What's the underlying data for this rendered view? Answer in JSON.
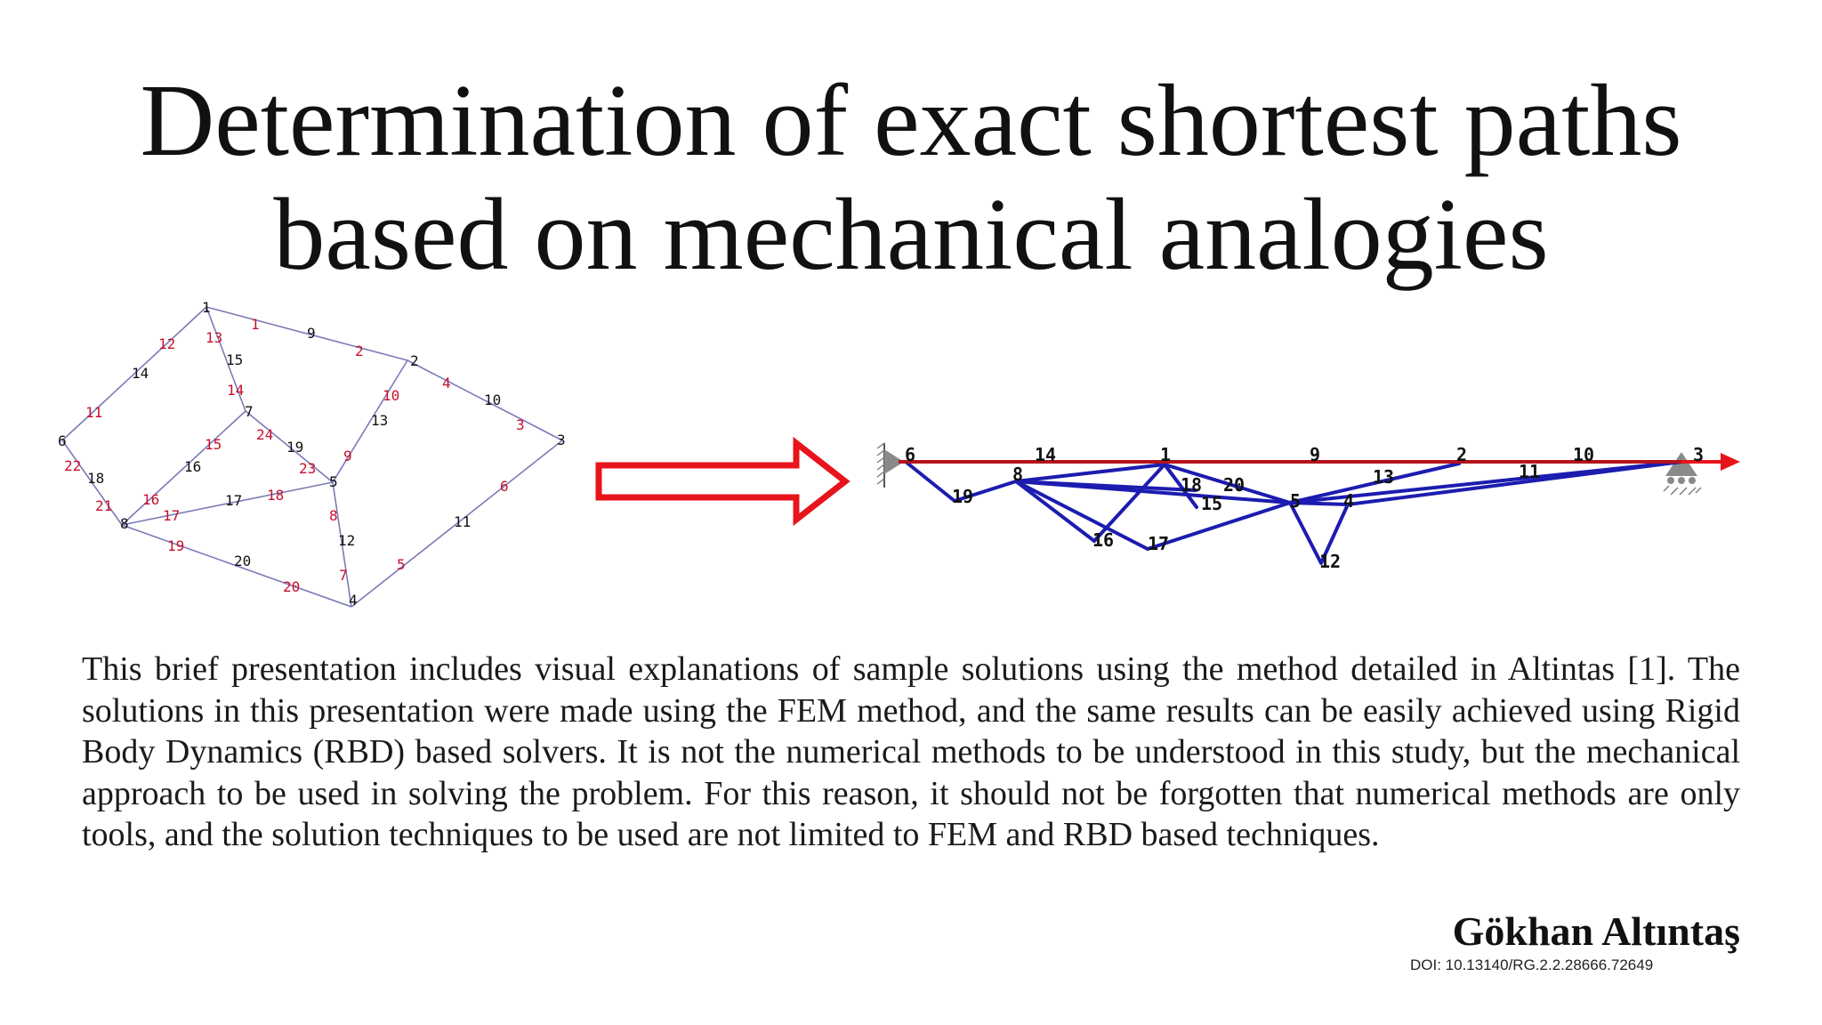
{
  "title": {
    "line1": "Determination of exact shortest paths",
    "line2": "based on mechanical analogies"
  },
  "body": "This brief presentation includes visual explanations of sample solutions using the method detailed in Altintas [1]. The solutions in this presentation were made using the FEM method, and the same results can be easily achieved using Rigid Body Dynamics (RBD) based solvers. It is not the numerical methods to be understood in this study, but the mechanical approach to be used in solving the problem. For this reason, it should not be forgotten that numerical methods are only tools, and the solution techniques to be used are not limited to FEM and RBD based techniques.",
  "author": "Gökhan Altıntaş",
  "doi": "DOI: 10.13140/RG.2.2.28666.72649",
  "colors": {
    "graph_edge": "#7a7ab8",
    "edge_label": "#c8102e",
    "node_label": "#111111",
    "arrow": "#e8141b",
    "solution_path": "#b5121b",
    "deformed_mesh": "#1c1cb0",
    "support": "#888888"
  },
  "left_graph": {
    "node_labels": [
      "1",
      "2",
      "3",
      "4",
      "5",
      "6",
      "7",
      "8"
    ],
    "edge_labels": [
      "1",
      "2",
      "3",
      "4",
      "5",
      "6",
      "7",
      "8",
      "9",
      "10",
      "11",
      "12",
      "13",
      "14",
      "15",
      "16",
      "17",
      "18",
      "19",
      "20",
      "21",
      "22",
      "23",
      "24"
    ],
    "weight_labels": [
      "9",
      "10",
      "11",
      "12",
      "13",
      "14",
      "15",
      "16",
      "17",
      "18",
      "19",
      "20"
    ]
  },
  "right_graph": {
    "labels": [
      "6",
      "14",
      "1",
      "9",
      "2",
      "10",
      "3",
      "19",
      "8",
      "18",
      "20",
      "15",
      "13",
      "11",
      "5",
      "4",
      "16",
      "17",
      "12"
    ]
  }
}
